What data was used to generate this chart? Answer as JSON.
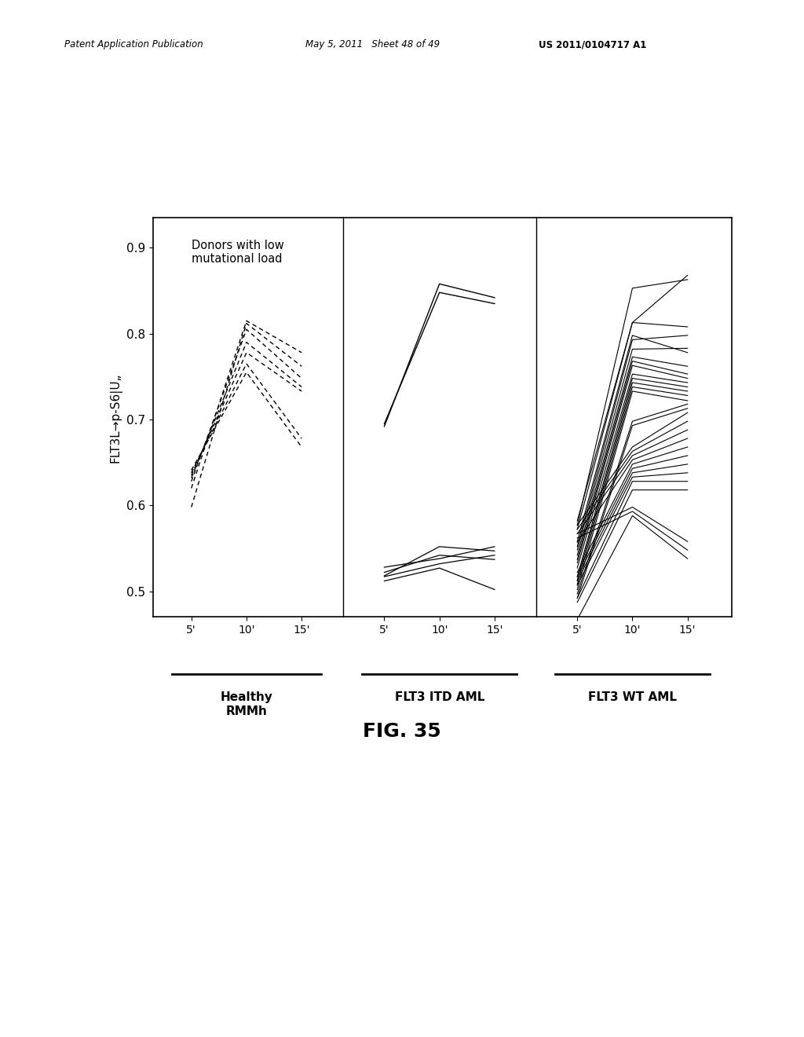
{
  "header_left": "Patent Application Publication",
  "header_mid": "May 5, 2011   Sheet 48 of 49",
  "header_right": "US 2011/0104717 A1",
  "figure_label": "FIG. 35",
  "ylabel": "FLT3L→p-S6|U„",
  "annotation": "Donors with low\nmutational load",
  "ylim": [
    0.47,
    0.935
  ],
  "yticks": [
    0.5,
    0.6,
    0.7,
    0.8,
    0.9
  ],
  "xticks_labels": [
    "5'",
    "10'",
    "15'"
  ],
  "group_labels": [
    "Healthy\nRMMh",
    "FLT3 ITD AML",
    "FLT3 WT AML"
  ],
  "healthy_lines": [
    [
      0.598,
      0.812,
      0.762
    ],
    [
      0.62,
      0.815,
      0.778
    ],
    [
      0.628,
      0.805,
      0.748
    ],
    [
      0.632,
      0.79,
      0.738
    ],
    [
      0.635,
      0.778,
      0.733
    ],
    [
      0.638,
      0.765,
      0.678
    ],
    [
      0.641,
      0.755,
      0.668
    ]
  ],
  "flt3itd_high_lines": [
    [
      0.695,
      0.848,
      0.835
    ],
    [
      0.692,
      0.858,
      0.842
    ]
  ],
  "flt3itd_low_lines": [
    [
      0.528,
      0.538,
      0.552
    ],
    [
      0.522,
      0.542,
      0.537
    ],
    [
      0.518,
      0.552,
      0.547
    ],
    [
      0.517,
      0.532,
      0.542
    ],
    [
      0.512,
      0.527,
      0.502
    ]
  ],
  "flt3wt_lines": [
    [
      0.558,
      0.798,
      0.778
    ],
    [
      0.552,
      0.793,
      0.798
    ],
    [
      0.548,
      0.782,
      0.783
    ],
    [
      0.542,
      0.773,
      0.762
    ],
    [
      0.537,
      0.768,
      0.753
    ],
    [
      0.533,
      0.763,
      0.748
    ],
    [
      0.527,
      0.753,
      0.743
    ],
    [
      0.517,
      0.748,
      0.738
    ],
    [
      0.513,
      0.743,
      0.733
    ],
    [
      0.508,
      0.738,
      0.728
    ],
    [
      0.502,
      0.733,
      0.722
    ],
    [
      0.497,
      0.698,
      0.718
    ],
    [
      0.492,
      0.693,
      0.713
    ],
    [
      0.577,
      0.668,
      0.708
    ],
    [
      0.572,
      0.663,
      0.698
    ],
    [
      0.567,
      0.658,
      0.688
    ],
    [
      0.557,
      0.653,
      0.678
    ],
    [
      0.522,
      0.648,
      0.668
    ],
    [
      0.517,
      0.643,
      0.658
    ],
    [
      0.512,
      0.638,
      0.648
    ],
    [
      0.507,
      0.633,
      0.638
    ],
    [
      0.582,
      0.813,
      0.868
    ],
    [
      0.577,
      0.853,
      0.863
    ],
    [
      0.572,
      0.813,
      0.808
    ],
    [
      0.492,
      0.628,
      0.628
    ],
    [
      0.487,
      0.618,
      0.618
    ],
    [
      0.567,
      0.598,
      0.558
    ],
    [
      0.562,
      0.593,
      0.548
    ],
    [
      0.467,
      0.588,
      0.538
    ]
  ],
  "background_color": "#ffffff",
  "line_color": "#000000"
}
